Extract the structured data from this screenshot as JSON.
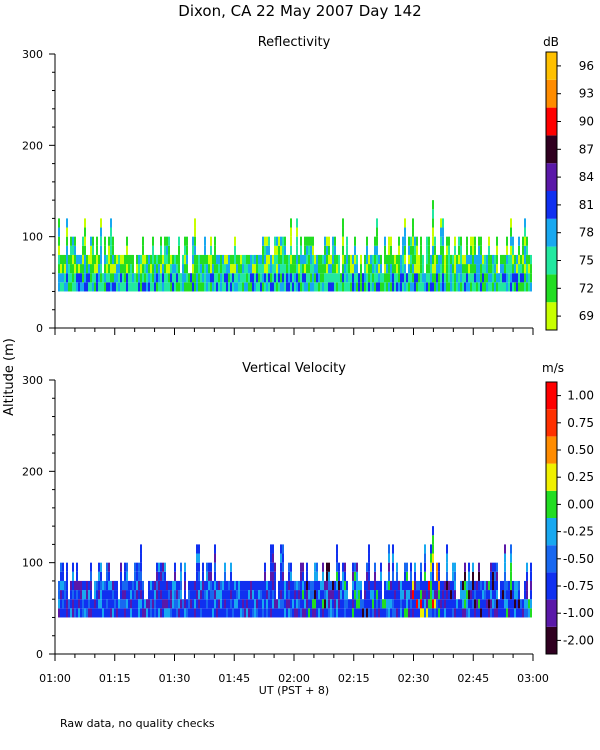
{
  "figure": {
    "title": "Dixon, CA 22 May 2007  Day 142",
    "ylabel": "Altitude (m)",
    "xlabel": "UT  (PST + 8)",
    "footnote": "Raw data, no quality checks",
    "x_ticks": [
      "01:00",
      "01:15",
      "01:30",
      "01:45",
      "02:00",
      "02:15",
      "02:30",
      "02:45",
      "03:00"
    ]
  },
  "chart_data": [
    {
      "type": "heatmap",
      "title": "Reflectivity",
      "xlabel": "UT  (PST + 8)",
      "ylabel": "Altitude (m)",
      "xlim": [
        "01:00",
        "03:00"
      ],
      "ylim": [
        0,
        300
      ],
      "y_ticks": [
        "0",
        "100",
        "200",
        "300"
      ],
      "colorbar": {
        "unit": "dB",
        "labels": [
          "69",
          "72",
          "75",
          "78",
          "81",
          "84",
          "87",
          "90",
          "93",
          "96"
        ],
        "colors": [
          "#c8ff00",
          "#22dd22",
          "#22e8a0",
          "#18a8f0",
          "#1030f0",
          "#5a18a8",
          "#300020",
          "#ff0000",
          "#ff8c00",
          "#ffc000"
        ]
      },
      "data_extent": {
        "base_altitude_m": 40,
        "typical_top_m": 80,
        "max_top_m": 140,
        "max_top_time": "02:34"
      },
      "dominant_range_db": [
        72,
        78
      ]
    },
    {
      "type": "heatmap",
      "title": "Vertical Velocity",
      "xlabel": "UT  (PST + 8)",
      "ylabel": "Altitude (m)",
      "xlim": [
        "01:00",
        "03:00"
      ],
      "ylim": [
        0,
        300
      ],
      "y_ticks": [
        "0",
        "100",
        "200",
        "300"
      ],
      "colorbar": {
        "unit": "m/s",
        "labels": [
          "-2.00",
          "-1.00",
          "-0.75",
          "-0.50",
          "-0.25",
          "0.00",
          "0.25",
          "0.50",
          "0.75",
          "1.00"
        ],
        "colors": [
          "#300020",
          "#5a18a8",
          "#1030f0",
          "#1868f0",
          "#18a8f0",
          "#22dd22",
          "#f0f000",
          "#ff8c00",
          "#ff3000",
          "#ff0000"
        ]
      },
      "data_extent": {
        "base_altitude_m": 40,
        "typical_top_m": 80,
        "max_top_m": 140,
        "max_top_time": "02:34"
      },
      "dominant_range_ms": [
        -1.0,
        -0.5
      ]
    }
  ]
}
